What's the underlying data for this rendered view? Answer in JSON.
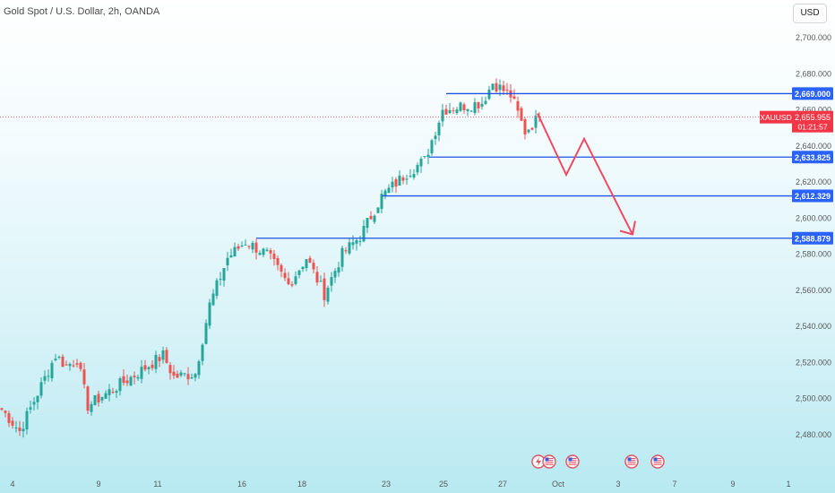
{
  "header": {
    "title": "Gold Spot / U.S. Dollar, 2h, OANDA",
    "currency": "USD"
  },
  "chart_data": {
    "type": "candlestick",
    "title": "Gold Spot / U.S. Dollar, 2h, OANDA",
    "symbol": "XAUUSD",
    "ylim": [
      2470,
      2710
    ],
    "y_ticks": [
      2480,
      2500,
      2520,
      2540,
      2560,
      2580,
      2600,
      2620,
      2640,
      2660,
      2680,
      2700
    ],
    "y_tick_labels": [
      "2,480.000",
      "2,500.000",
      "2,520.000",
      "2,540.000",
      "2,560.000",
      "2,580.000",
      "2,600.000",
      "2,620.000",
      "2,640.000",
      "2,660.000",
      "2,680.000",
      "2,700.000"
    ],
    "x_tick_labels": [
      "4",
      "9",
      "11",
      "16",
      "18",
      "23",
      "25",
      "27",
      "Oct",
      "3",
      "7",
      "9",
      "1"
    ],
    "current_price": {
      "label": "XAUUSD",
      "value": "2,655.955",
      "countdown": "01:21:57",
      "price": 2655.955
    },
    "levels": [
      {
        "value": "2,669.000",
        "price": 2669.0
      },
      {
        "value": "2,633.825",
        "price": 2633.825
      },
      {
        "value": "2,612.329",
        "price": 2612.329
      },
      {
        "value": "2,588.879",
        "price": 2588.879
      }
    ],
    "projection": {
      "prices": [
        2658,
        2624,
        2644,
        2591
      ]
    },
    "anchors": [
      {
        "bar": 0,
        "price": 2494
      },
      {
        "bar": 5,
        "price": 2482
      },
      {
        "bar": 15,
        "price": 2524
      },
      {
        "bar": 18,
        "price": 2518
      },
      {
        "bar": 21,
        "price": 2522
      },
      {
        "bar": 24,
        "price": 2496
      },
      {
        "bar": 30,
        "price": 2504
      },
      {
        "bar": 37,
        "price": 2513
      },
      {
        "bar": 45,
        "price": 2524
      },
      {
        "bar": 48,
        "price": 2512
      },
      {
        "bar": 54,
        "price": 2514
      },
      {
        "bar": 58,
        "price": 2552
      },
      {
        "bar": 63,
        "price": 2578
      },
      {
        "bar": 68,
        "price": 2587
      },
      {
        "bar": 74,
        "price": 2580
      },
      {
        "bar": 80,
        "price": 2563
      },
      {
        "bar": 85,
        "price": 2578
      },
      {
        "bar": 90,
        "price": 2558
      },
      {
        "bar": 95,
        "price": 2580
      },
      {
        "bar": 100,
        "price": 2590
      },
      {
        "bar": 106,
        "price": 2612
      },
      {
        "bar": 113,
        "price": 2625
      },
      {
        "bar": 118,
        "price": 2632
      },
      {
        "bar": 123,
        "price": 2660
      },
      {
        "bar": 128,
        "price": 2662
      },
      {
        "bar": 134,
        "price": 2664
      },
      {
        "bar": 137,
        "price": 2675
      },
      {
        "bar": 142,
        "price": 2668
      },
      {
        "bar": 146,
        "price": 2648
      },
      {
        "bar": 150,
        "price": 2656
      }
    ],
    "events": [
      {
        "kind": "flash",
        "icon": "lightning-icon"
      },
      {
        "kind": "flag",
        "icon": "us-flag-icon"
      },
      {
        "kind": "flag",
        "icon": "us-flag-icon"
      },
      {
        "kind": "flag",
        "icon": "us-flag-icon"
      },
      {
        "kind": "flag",
        "icon": "us-flag-icon"
      }
    ],
    "colors": {
      "up": "#26a69a",
      "down": "#ef5350",
      "level_line": "#1e53e5",
      "projection": "#f04a62",
      "current_price_tag": "#f23645",
      "level_tag": "#2962ff"
    }
  }
}
